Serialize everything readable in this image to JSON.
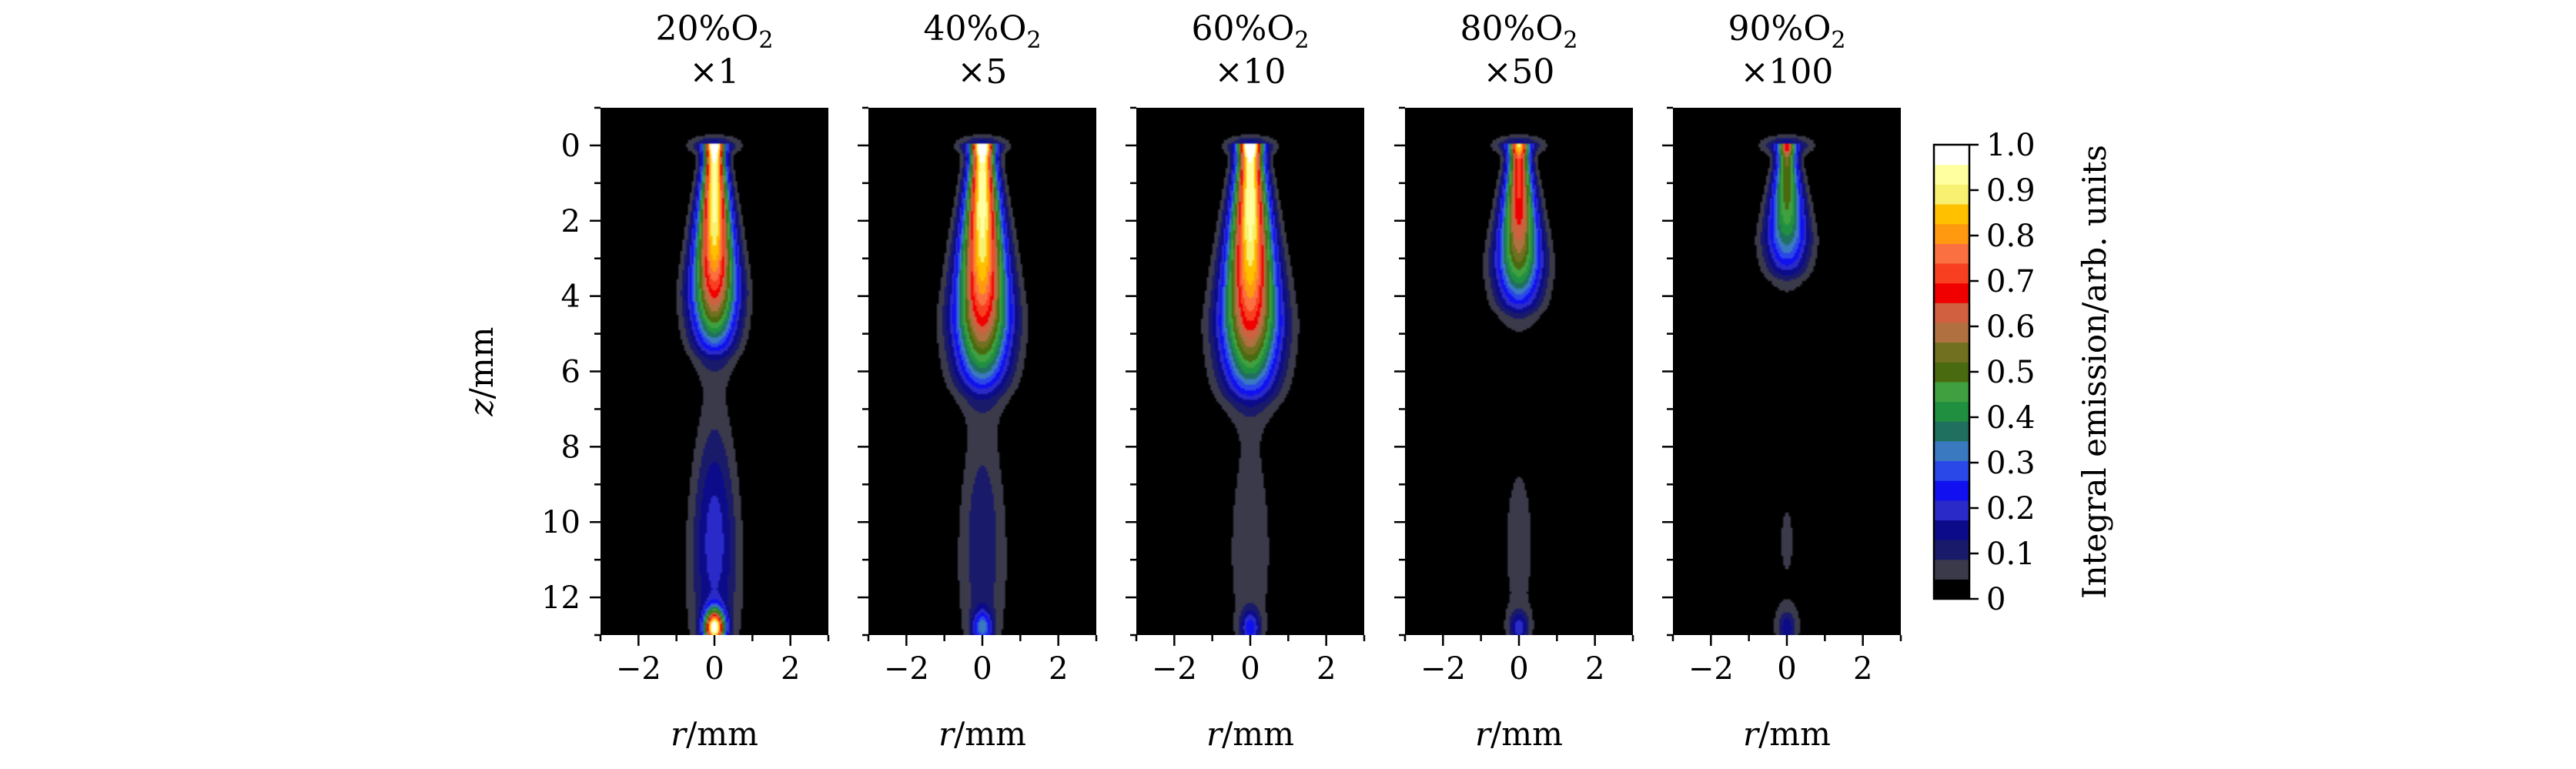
{
  "chart_data": {
    "type": "heatmap",
    "description_free": true,
    "panels": [
      {
        "title": [
          "20%O",
          "2",
          "×1"
        ],
        "scale": 1,
        "core_peak": 1.0,
        "core_len": 5.6,
        "core_width": 0.3,
        "tail_peak": 0.35,
        "tip_peak": 0.95
      },
      {
        "title": [
          "40%O",
          "2",
          "×5"
        ],
        "scale": 5,
        "core_peak": 1.0,
        "core_len": 6.6,
        "core_width": 0.36,
        "tail_peak": 0.22,
        "tip_peak": 0.28
      },
      {
        "title": [
          "60%O",
          "2",
          "×10"
        ],
        "scale": 10,
        "core_peak": 1.0,
        "core_len": 6.8,
        "core_width": 0.38,
        "tail_peak": 0.14,
        "tip_peak": 0.22
      },
      {
        "title": [
          "80%O",
          "2",
          "×50"
        ],
        "scale": 50,
        "core_peak": 0.75,
        "core_len": 4.5,
        "core_width": 0.3,
        "tail_peak": 0.1,
        "tip_peak": 0.18
      },
      {
        "title": [
          "90%O",
          "2",
          "×100"
        ],
        "scale": 100,
        "core_peak": 0.55,
        "core_len": 3.6,
        "core_width": 0.28,
        "tail_peak": 0.08,
        "tip_peak": 0.14
      }
    ],
    "x_label_var": "r",
    "x_label_unit": "/mm",
    "y_label_var": "z",
    "y_label_unit": "/mm",
    "x_ticks": [
      -2,
      0,
      2
    ],
    "x_tick_labels": [
      "−2",
      "0",
      "2"
    ],
    "xlim": [
      -3,
      3
    ],
    "y_ticks": [
      0,
      2,
      4,
      6,
      8,
      10,
      12
    ],
    "y_tick_labels": [
      "0",
      "2",
      "4",
      "6",
      "8",
      "10",
      "12"
    ],
    "ylim": [
      13,
      -1
    ],
    "colorbar": {
      "label": "Integral emission/arb. units",
      "range": [
        0,
        1
      ],
      "ticks": [
        0,
        0.1,
        0.2,
        0.3,
        0.4,
        0.5,
        0.6,
        0.7,
        0.8,
        0.9,
        1.0
      ],
      "tick_labels": [
        "0",
        "0.1",
        "0.2",
        "0.3",
        "0.4",
        "0.5",
        "0.6",
        "0.7",
        "0.8",
        "0.9",
        "1.0"
      ],
      "colors": [
        "#000000",
        "#3a3a4a",
        "#1a1a6a",
        "#0c0c8a",
        "#2a2ac8",
        "#1010f0",
        "#2a48e8",
        "#3a78c0",
        "#207060",
        "#209040",
        "#40a040",
        "#4a6a10",
        "#707020",
        "#b07040",
        "#d06040",
        "#f00000",
        "#f84020",
        "#fa7040",
        "#ff9a10",
        "#ffc000",
        "#f8f070",
        "#ffffa0",
        "#ffffff"
      ]
    }
  }
}
